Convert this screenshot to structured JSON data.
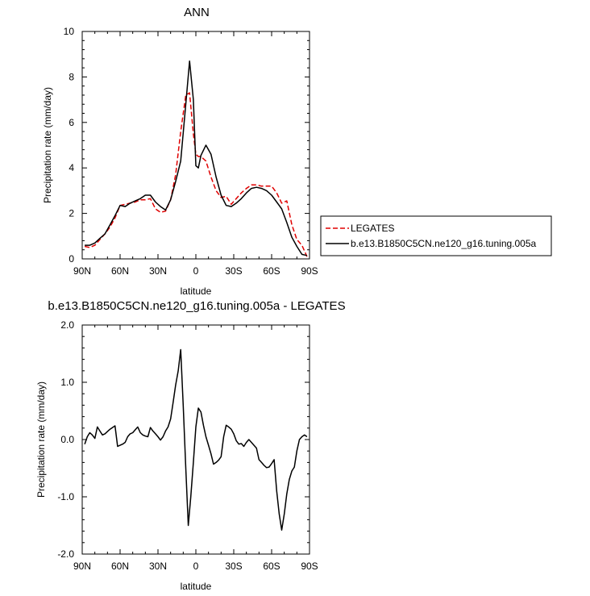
{
  "chart_data": [
    {
      "type": "line",
      "title": "ANN",
      "xlabel": "latitude",
      "ylabel": "Precipitation rate (mm/day)",
      "xlim": [
        -90,
        90
      ],
      "ylim": [
        0,
        10
      ],
      "xticks": [
        -90,
        -60,
        -30,
        0,
        30,
        60,
        90
      ],
      "xtick_labels": [
        "90N",
        "60N",
        "30N",
        "0",
        "30S",
        "60S",
        "90S"
      ],
      "yticks": [
        0,
        2,
        4,
        6,
        8,
        10
      ],
      "ytick_labels": [
        "0",
        "2",
        "4",
        "6",
        "8",
        "10"
      ],
      "legend_placement": "outside-right",
      "series": [
        {
          "name": "LEGATES",
          "color": "#e00000",
          "dash": "dashed",
          "x": [
            -88,
            -84,
            -80,
            -76,
            -72,
            -68,
            -64,
            -60,
            -56,
            -52,
            -48,
            -44,
            -40,
            -36,
            -32,
            -28,
            -24,
            -20,
            -16,
            -12,
            -8,
            -5,
            -2,
            0,
            2,
            4,
            8,
            12,
            16,
            20,
            24,
            28,
            32,
            36,
            40,
            44,
            48,
            52,
            56,
            60,
            64,
            68,
            72,
            76,
            80,
            84,
            88
          ],
          "values": [
            0.55,
            0.5,
            0.6,
            0.85,
            1.1,
            1.4,
            1.8,
            2.35,
            2.4,
            2.45,
            2.5,
            2.6,
            2.6,
            2.65,
            2.2,
            2.05,
            2.1,
            2.6,
            3.7,
            5.6,
            7.2,
            7.3,
            5.5,
            4.6,
            4.5,
            4.5,
            4.3,
            3.6,
            3.0,
            2.7,
            2.75,
            2.4,
            2.65,
            2.9,
            3.1,
            3.25,
            3.25,
            3.2,
            3.2,
            3.2,
            2.9,
            2.45,
            2.55,
            1.5,
            0.85,
            0.6,
            0.1
          ]
        },
        {
          "name": "b.e13.B1850C5CN.ne120_g16.tuning.005a",
          "color": "#000000",
          "dash": "solid",
          "x": [
            -88,
            -84,
            -80,
            -76,
            -72,
            -68,
            -64,
            -60,
            -56,
            -52,
            -48,
            -44,
            -40,
            -36,
            -32,
            -28,
            -24,
            -20,
            -16,
            -12,
            -8,
            -5,
            -2,
            0,
            2,
            4,
            8,
            12,
            16,
            20,
            24,
            28,
            32,
            36,
            40,
            44,
            48,
            52,
            56,
            60,
            64,
            68,
            72,
            76,
            80,
            84,
            88
          ],
          "values": [
            0.6,
            0.6,
            0.7,
            0.9,
            1.1,
            1.5,
            1.9,
            2.35,
            2.3,
            2.45,
            2.55,
            2.65,
            2.8,
            2.8,
            2.5,
            2.3,
            2.15,
            2.6,
            3.4,
            4.3,
            6.8,
            8.7,
            7.0,
            4.1,
            4.0,
            4.55,
            5.0,
            4.6,
            3.6,
            2.8,
            2.35,
            2.3,
            2.45,
            2.65,
            2.9,
            3.1,
            3.15,
            3.1,
            3.0,
            2.8,
            2.5,
            2.2,
            1.6,
            0.95,
            0.55,
            0.2,
            0.15
          ]
        }
      ]
    },
    {
      "type": "line",
      "title": "b.e13.B1850C5CN.ne120_g16.tuning.005a - LEGATES",
      "xlabel": "latitude",
      "ylabel": "Precipitation rate (mm/day)",
      "xlim": [
        -90,
        90
      ],
      "ylim": [
        -2,
        2
      ],
      "xticks": [
        -90,
        -60,
        -30,
        0,
        30,
        60,
        90
      ],
      "xtick_labels": [
        "90N",
        "60N",
        "30N",
        "0",
        "30S",
        "60S",
        "90S"
      ],
      "yticks": [
        -2,
        -1,
        0,
        1,
        2
      ],
      "ytick_labels": [
        "-2.0",
        "-1.0",
        "0.0",
        "1.0",
        "2.0"
      ],
      "series": [
        {
          "color": "#000000",
          "dash": "solid",
          "x": [
            -88,
            -86,
            -84,
            -82,
            -80,
            -78,
            -76,
            -74,
            -72,
            -70,
            -68,
            -66,
            -64,
            -62,
            -60,
            -58,
            -56,
            -54,
            -52,
            -50,
            -48,
            -46,
            -44,
            -42,
            -40,
            -38,
            -36,
            -34,
            -32,
            -30,
            -28,
            -26,
            -24,
            -22,
            -20,
            -18,
            -16,
            -14,
            -12,
            -10,
            -8,
            -6,
            -4,
            -2,
            0,
            2,
            4,
            6,
            8,
            10,
            12,
            14,
            16,
            18,
            20,
            22,
            24,
            26,
            28,
            30,
            32,
            34,
            36,
            38,
            40,
            42,
            44,
            46,
            48,
            50,
            52,
            54,
            56,
            58,
            60,
            62,
            64,
            66,
            68,
            70,
            72,
            74,
            76,
            78,
            80,
            82,
            84,
            86,
            88
          ],
          "values": [
            -0.08,
            0.05,
            0.12,
            0.08,
            0.02,
            0.22,
            0.15,
            0.08,
            0.1,
            0.14,
            0.18,
            0.21,
            0.24,
            -0.12,
            -0.1,
            -0.08,
            -0.05,
            0.05,
            0.1,
            0.12,
            0.17,
            0.22,
            0.12,
            0.08,
            0.06,
            0.05,
            0.21,
            0.15,
            0.1,
            0.05,
            -0.01,
            0.05,
            0.15,
            0.22,
            0.36,
            0.65,
            0.95,
            1.2,
            1.57,
            0.6,
            -0.5,
            -1.5,
            -1.0,
            -0.4,
            0.22,
            0.55,
            0.48,
            0.25,
            0.05,
            -0.1,
            -0.25,
            -0.43,
            -0.4,
            -0.36,
            -0.3,
            0.05,
            0.25,
            0.22,
            0.18,
            0.1,
            -0.02,
            -0.08,
            -0.07,
            -0.12,
            -0.05,
            0.0,
            -0.05,
            -0.1,
            -0.15,
            -0.35,
            -0.4,
            -0.45,
            -0.49,
            -0.48,
            -0.42,
            -0.35,
            -0.9,
            -1.3,
            -1.58,
            -1.3,
            -0.95,
            -0.7,
            -0.55,
            -0.48,
            -0.2,
            0.0,
            0.05,
            0.08,
            0.05
          ]
        }
      ]
    }
  ]
}
